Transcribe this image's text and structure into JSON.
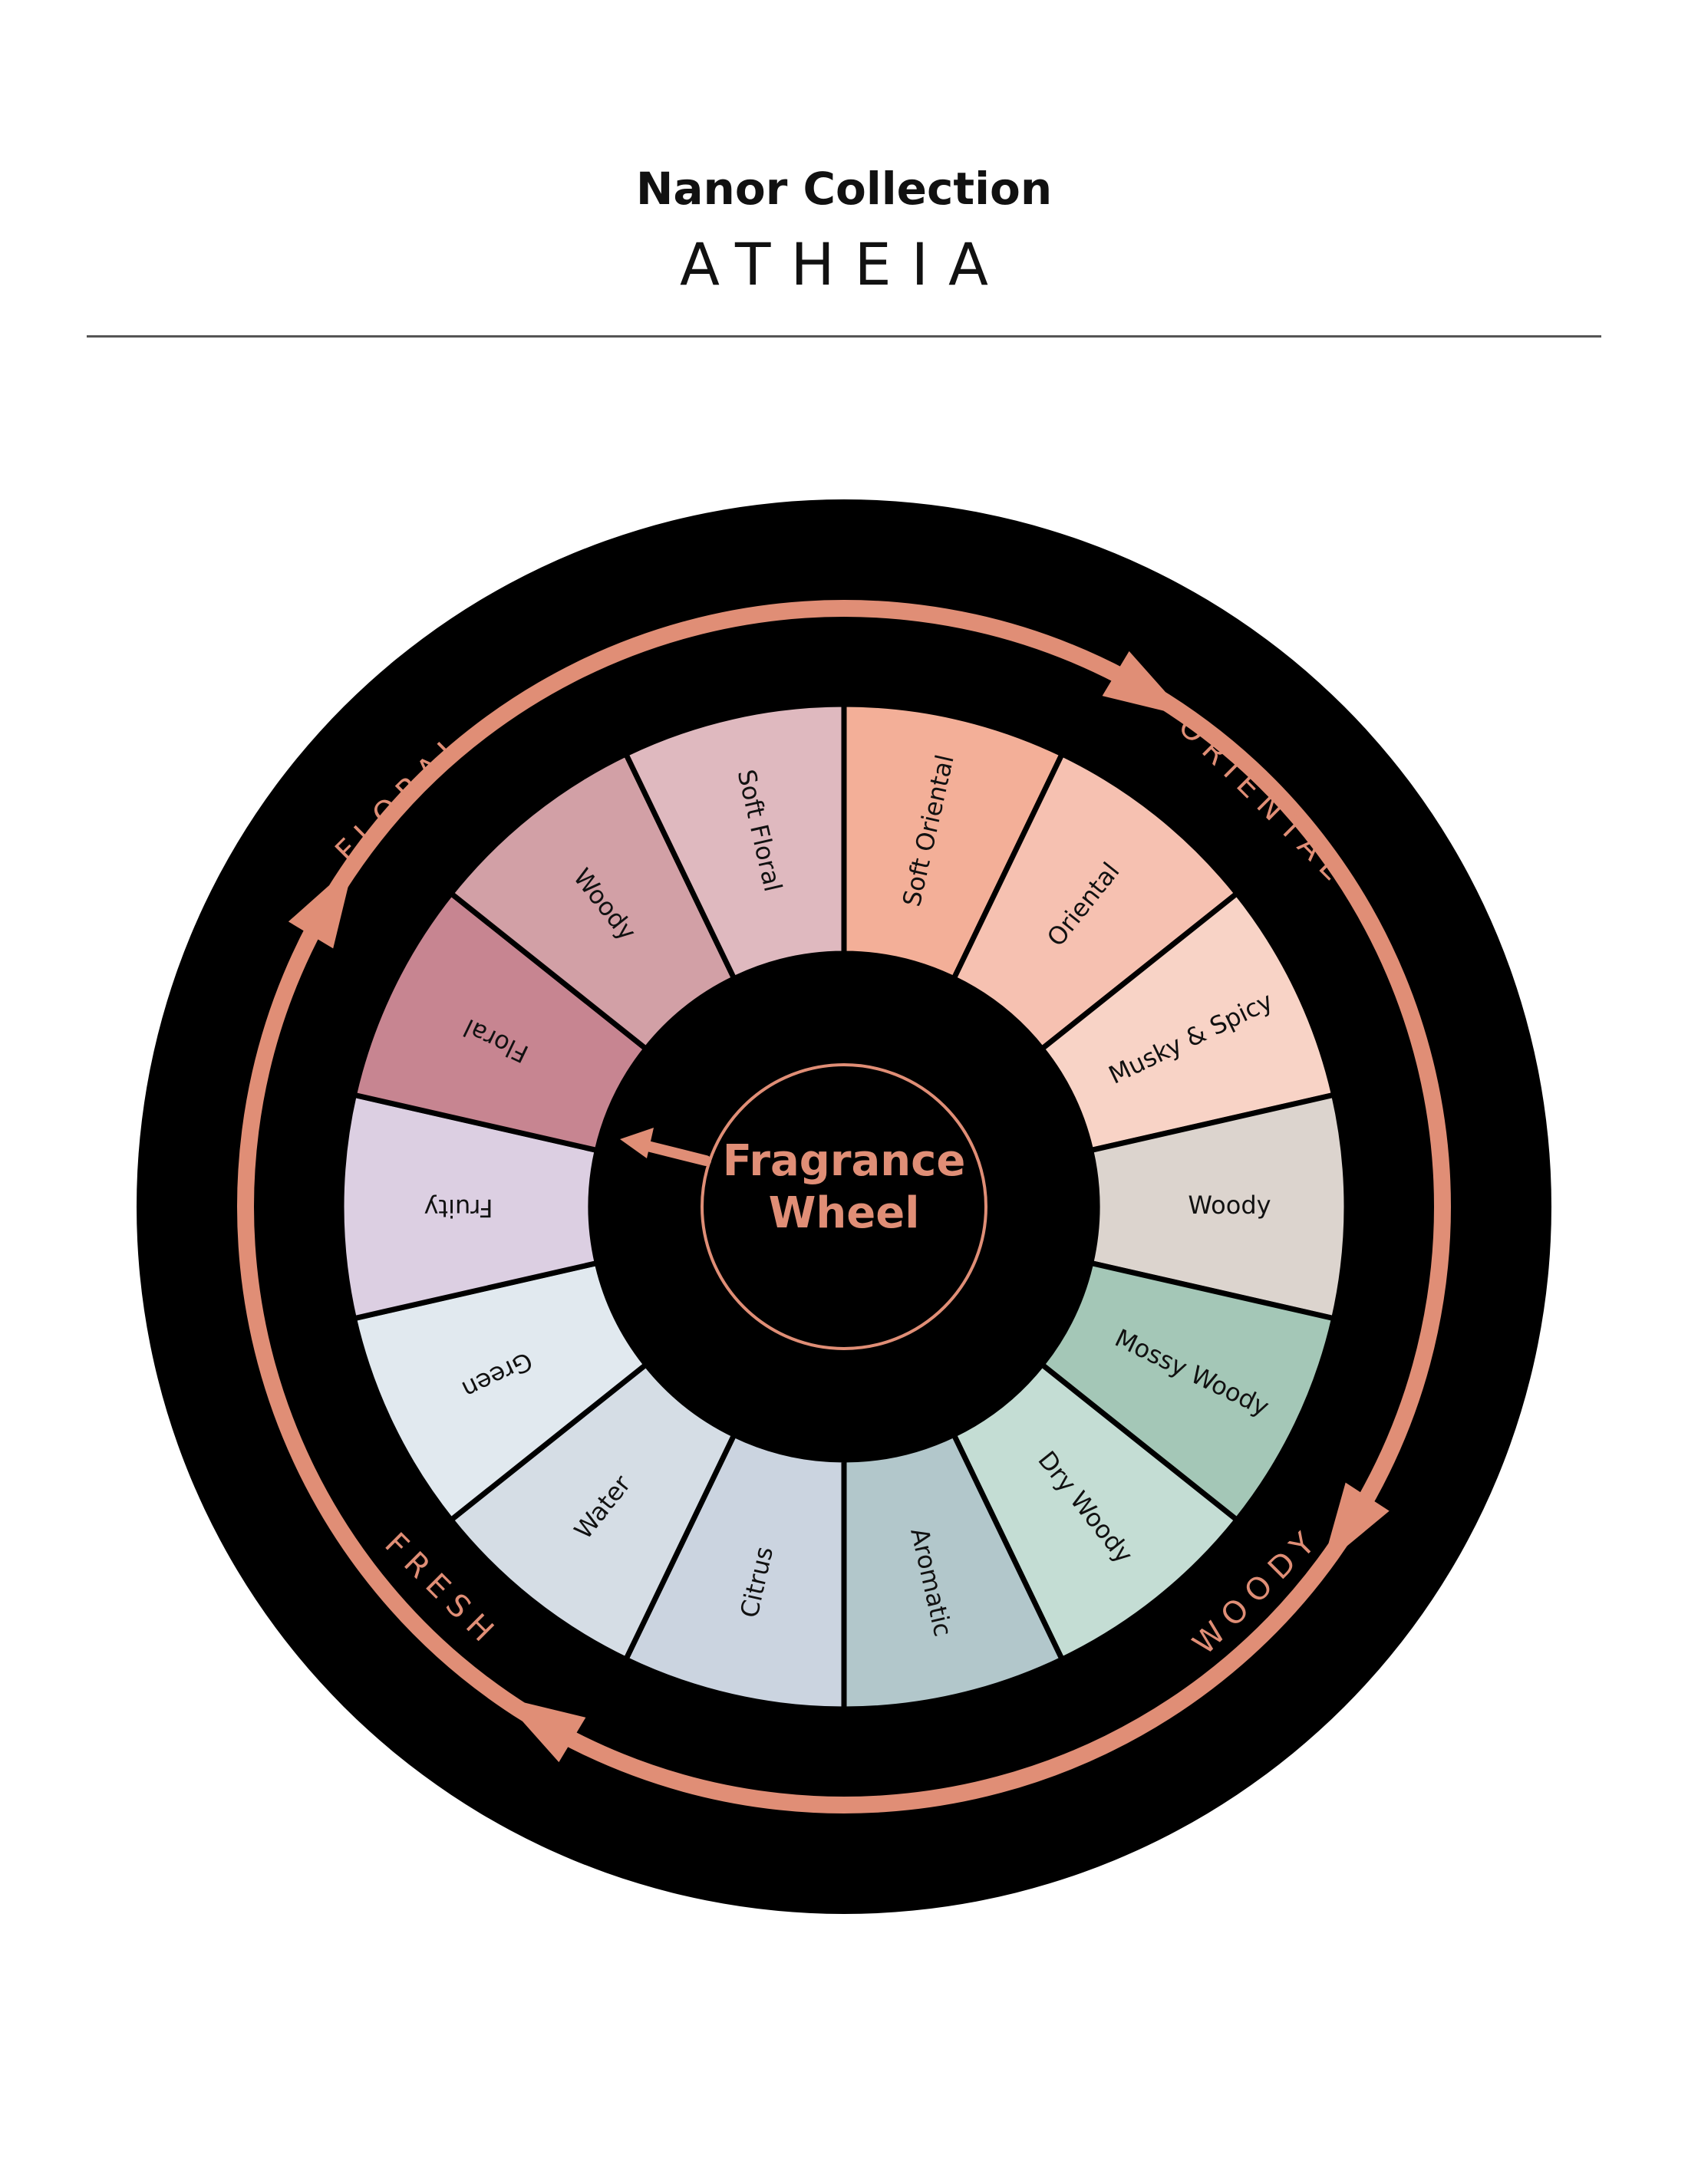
{
  "header": {
    "collection": "Nanor Collection",
    "brand": "ATHEIA"
  },
  "wheel": {
    "center_line1": "Fragrance",
    "center_line2": "Wheel",
    "accent_color": "#E08E76",
    "ring_color": "#000000",
    "families": [
      {
        "label": "FLORAL"
      },
      {
        "label": "ORIENTAL"
      },
      {
        "label": "WOODY"
      },
      {
        "label": "FRESH"
      }
    ],
    "segments": [
      {
        "label": "Soft Oriental",
        "color": "#F3AF98"
      },
      {
        "label": "Oriental",
        "color": "#F6C1B1"
      },
      {
        "label": "Musky & Spicy",
        "color": "#F8D3C6"
      },
      {
        "label": "Woody",
        "color": "#DCD4CE"
      },
      {
        "label": "Mossy Woody",
        "color": "#A4C7B7"
      },
      {
        "label": "Dry Woody",
        "color": "#C4DDD4"
      },
      {
        "label": "Aromatic",
        "color": "#B2C7CB"
      },
      {
        "label": "Citrus",
        "color": "#CBD4E0"
      },
      {
        "label": "Water",
        "color": "#D5DDE5"
      },
      {
        "label": "Green",
        "color": "#E1E9EF"
      },
      {
        "label": "Fruity",
        "color": "#DCCFE2"
      },
      {
        "label": "Floral",
        "color": "#C78591"
      },
      {
        "label": "Woody",
        "color": "#D2A0A6"
      },
      {
        "label": "Soft Floral",
        "color": "#DFB9BF"
      }
    ]
  }
}
